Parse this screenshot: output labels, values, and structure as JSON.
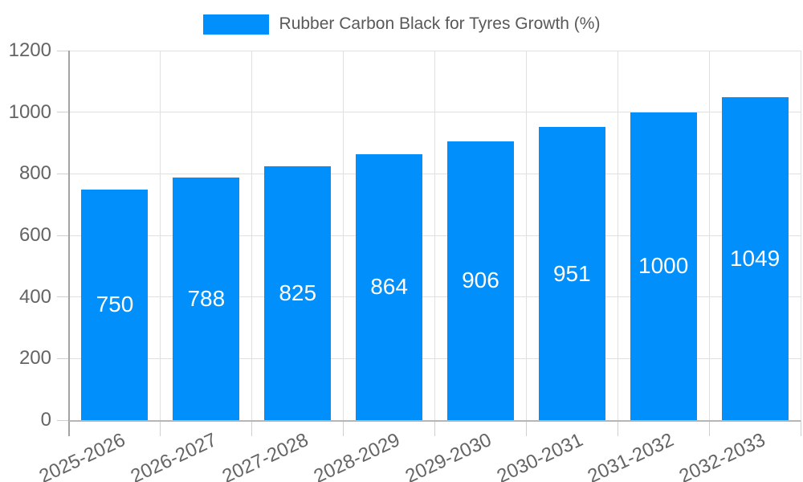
{
  "legend": {
    "swatch_color": "#008FFB",
    "label": "Rubber Carbon Black for Tyres Growth (%)"
  },
  "chart_data": {
    "type": "bar",
    "title": "Rubber Carbon Black for Tyres Growth (%)",
    "categories": [
      "2025-2026",
      "2026-2027",
      "2027-2028",
      "2028-2029",
      "2029-2030",
      "2030-2031",
      "2031-2032",
      "2032-2033"
    ],
    "series": [
      {
        "name": "Rubber Carbon Black for Tyres Growth (%)",
        "values": [
          750,
          788,
          825,
          864,
          906,
          951,
          1000,
          1049
        ]
      }
    ],
    "data_labels": [
      "750",
      "788",
      "825",
      "864",
      "906",
      "951",
      "1000",
      "1049"
    ],
    "yticks": [
      0,
      200,
      400,
      600,
      800,
      1000,
      1200
    ],
    "ylim": [
      0,
      1200
    ],
    "xlabel": "",
    "ylabel": "",
    "grid": true,
    "legend_position": "top",
    "x_label_rotation_deg": -25,
    "bar_color": "#008FFB",
    "data_label_color": "#ffffff"
  },
  "style": {
    "background": "#ffffff",
    "grid_color": "#e0e0e0",
    "y_axis_line_color": "#a3a3a3",
    "x_axis_line_color": "#b6b6b6",
    "tick_color": "#cfcfcf",
    "axis_text_color": "#646464",
    "legend_text_color": "#58595b"
  }
}
